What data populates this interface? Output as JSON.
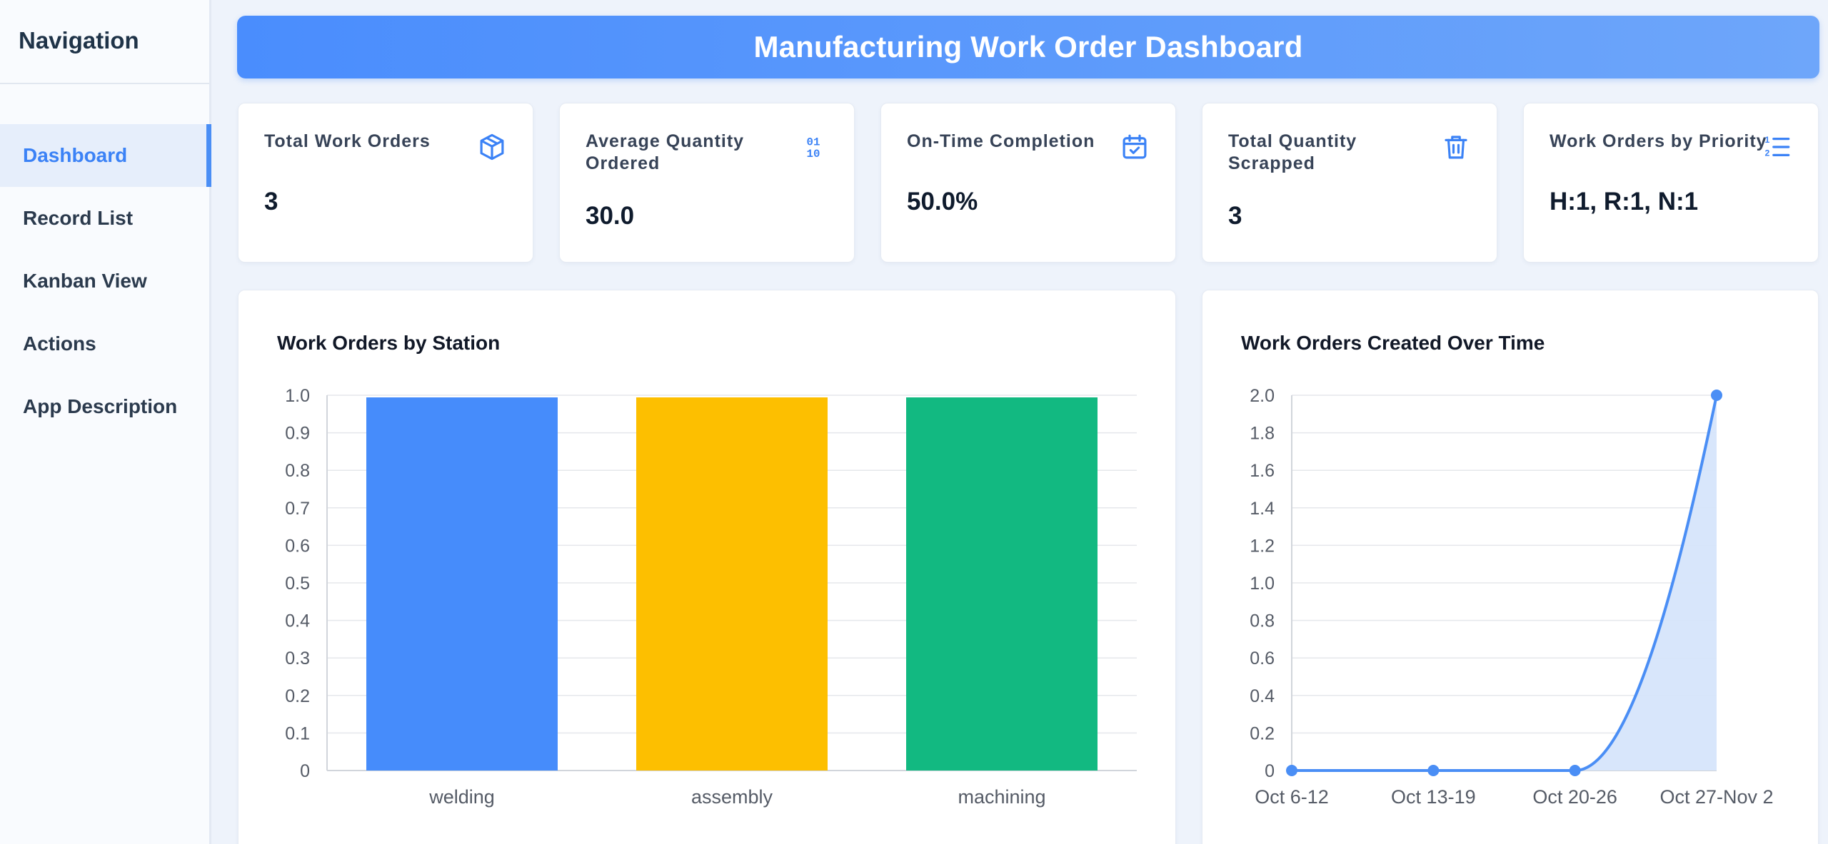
{
  "sidebar": {
    "title": "Navigation",
    "items": [
      {
        "label": "Dashboard",
        "active": true
      },
      {
        "label": "Record List",
        "active": false
      },
      {
        "label": "Kanban View",
        "active": false
      },
      {
        "label": "Actions",
        "active": false
      },
      {
        "label": "App Description",
        "active": false
      }
    ]
  },
  "header": {
    "title": "Manufacturing Work Order Dashboard"
  },
  "kpis": [
    {
      "label": "Total Work Orders",
      "value": "3",
      "icon": "cube-icon"
    },
    {
      "label": "Average Quantity Ordered",
      "value": "30.0",
      "icon": "binary-icon"
    },
    {
      "label": "On-Time Completion",
      "value": "50.0%",
      "icon": "calendar-check-icon"
    },
    {
      "label": "Total Quantity Scrapped",
      "value": "3",
      "icon": "trash-icon"
    },
    {
      "label": "Work Orders by Priority",
      "value": "H:1, R:1, N:1",
      "icon": "numbered-list-icon"
    }
  ],
  "colors": {
    "accent": "#3b82f6",
    "welding": "#468cfb",
    "assembly": "#fdbf00",
    "machining": "#12b981",
    "line": "#4a8ef5",
    "area": "#d6e5fb"
  },
  "chart_data": [
    {
      "type": "bar",
      "title": "Work Orders by Station",
      "categories": [
        "welding",
        "assembly",
        "machining"
      ],
      "values": [
        1,
        1,
        1
      ],
      "ylim": [
        0,
        1.0
      ],
      "yticks": [
        "0",
        "0.1",
        "0.2",
        "0.3",
        "0.4",
        "0.5",
        "0.6",
        "0.7",
        "0.8",
        "0.9",
        "1.0"
      ],
      "grid": true,
      "xlabel": "",
      "ylabel": ""
    },
    {
      "type": "area",
      "title": "Work Orders Created Over Time",
      "categories": [
        "Oct 6-12",
        "Oct 13-19",
        "Oct 20-26",
        "Oct 27-Nov 2"
      ],
      "values": [
        0,
        0,
        0,
        2
      ],
      "ylim": [
        0,
        2.0
      ],
      "yticks": [
        "0",
        "0.2",
        "0.4",
        "0.6",
        "0.8",
        "1.0",
        "1.2",
        "1.4",
        "1.6",
        "1.8",
        "2.0"
      ],
      "grid": true,
      "xlabel": "",
      "ylabel": ""
    }
  ]
}
